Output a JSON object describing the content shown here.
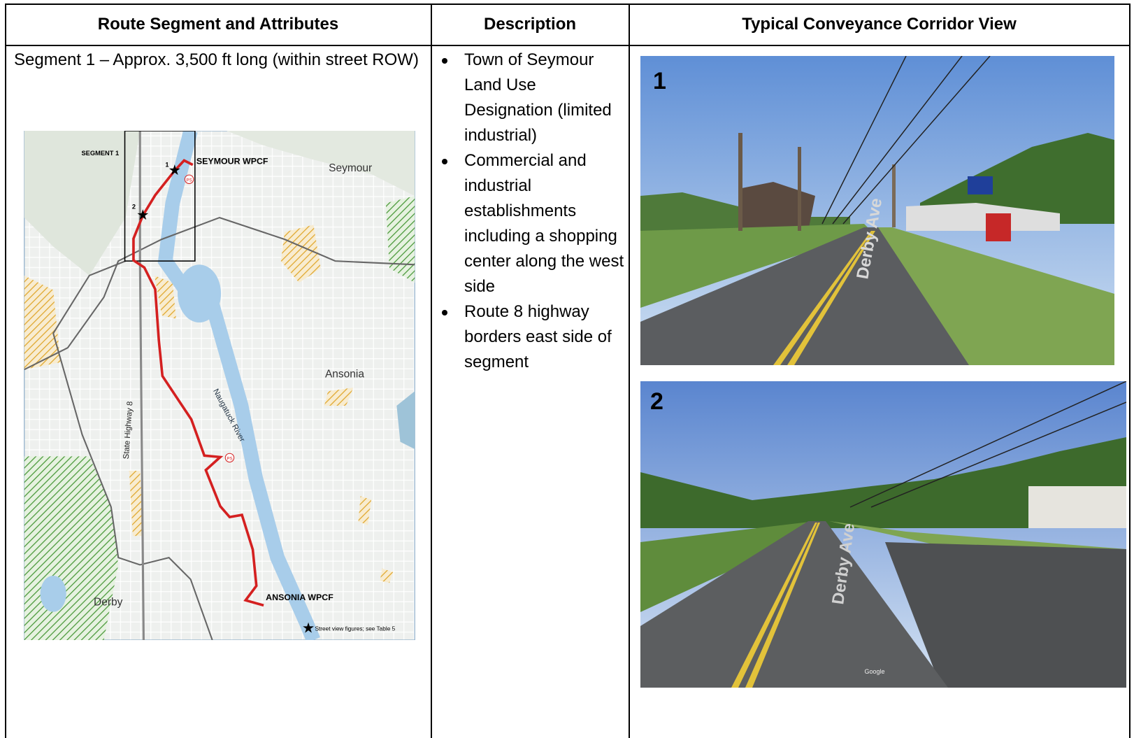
{
  "table": {
    "headers": [
      "Route Segment and Attributes",
      "Description",
      "Typical Conveyance Corridor View"
    ],
    "rows": [
      {
        "segment": "Segment 1 – Approx. 3,500 ft long (within street ROW)",
        "map": {
          "segment_box": "SEGMENT 1",
          "seymour_wpcf": "SEYMOUR WPCF",
          "seymour": "Seymour",
          "ansonia": "Ansonia",
          "derby": "Derby",
          "ansonia_wpcf": "ANSONIA WPCF",
          "river": "Naugatuck River",
          "highway": "State Highway 8",
          "legend": "Street view figures; see Table 5",
          "star_1": "1",
          "star_2": "2",
          "pump_station": "PS"
        },
        "description": [
          "Town of Seymour Land Use Designation (limited industrial)",
          "Commercial and industrial establishments including a shopping center along the west side",
          "Route 8 highway borders east side of segment"
        ],
        "views": [
          {
            "number": "1",
            "road": "Derby Ave"
          },
          {
            "number": "2",
            "road": "Derby Ave",
            "credit": "Google"
          }
        ]
      }
    ]
  }
}
